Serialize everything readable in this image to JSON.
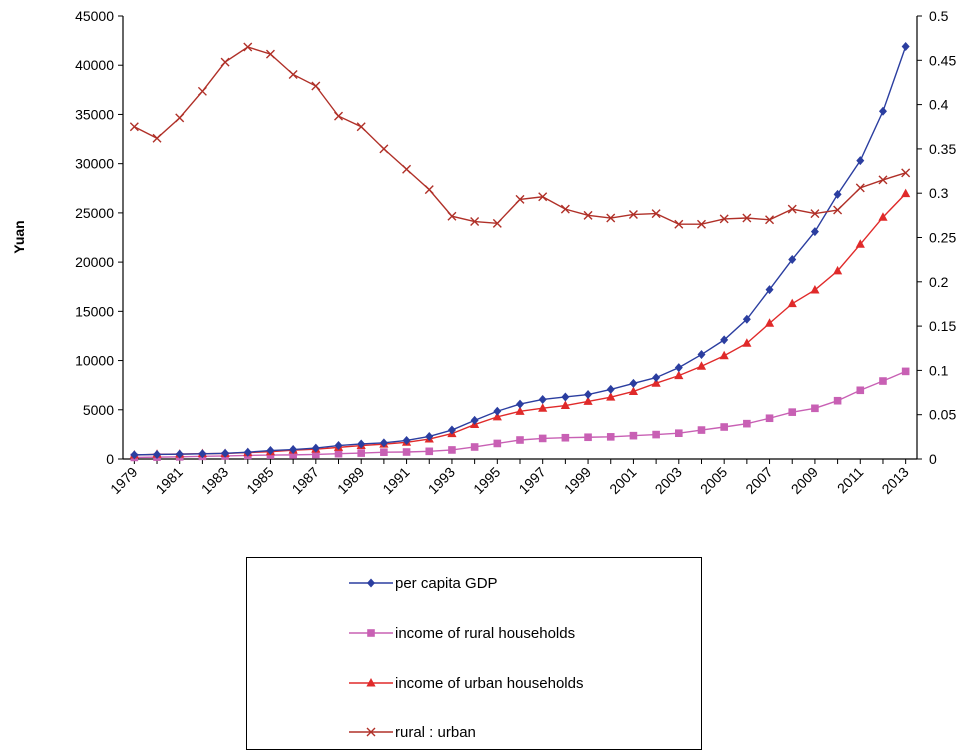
{
  "chart_data": {
    "type": "line",
    "xlabel": "",
    "ylabel": "Yuan",
    "ylim": [
      0,
      45000
    ],
    "ylim_right": [
      0,
      0.5
    ],
    "yticks_left": [
      "0",
      "5000",
      "10000",
      "15000",
      "20000",
      "25000",
      "30000",
      "35000",
      "40000",
      "45000"
    ],
    "yticks_right": [
      "0",
      "0.05",
      "0.1",
      "0.15",
      "0.2",
      "0.25",
      "0.3",
      "0.35",
      "0.4",
      "0.45",
      "0.5"
    ],
    "x_tick_labels": [
      "1979",
      "1981",
      "1983",
      "1985",
      "1987",
      "1989",
      "1991",
      "1993",
      "1995",
      "1997",
      "1999",
      "2001",
      "2003",
      "2005",
      "2007",
      "2009",
      "2011",
      "2013"
    ],
    "x": [
      1979,
      1980,
      1981,
      1982,
      1983,
      1984,
      1985,
      1986,
      1987,
      1988,
      1989,
      1990,
      1991,
      1992,
      1993,
      1994,
      1995,
      1996,
      1997,
      1998,
      1999,
      2000,
      2001,
      2002,
      2003,
      2004,
      2005,
      2006,
      2007,
      2008,
      2009,
      2010,
      2011,
      2012,
      2013
    ],
    "grid": false,
    "legend_position": "bottom",
    "series": [
      {
        "name": "per capita GDP",
        "axis": "left",
        "color": "#2b3ea0",
        "marker": "diamond",
        "values": [
          420,
          460,
          490,
          530,
          580,
          690,
          860,
          960,
          1110,
          1370,
          1530,
          1640,
          1880,
          2290,
          2940,
          3920,
          4850,
          5580,
          6050,
          6300,
          6550,
          7070,
          7680,
          8270,
          9280,
          10610,
          12100,
          14190,
          17210,
          20270,
          23100,
          26880,
          30310,
          35320,
          41900
        ]
      },
      {
        "name": "income of rural households",
        "axis": "left",
        "color": "#c860b4",
        "marker": "square",
        "values": [
          160,
          190,
          220,
          270,
          310,
          360,
          400,
          420,
          460,
          540,
          600,
          690,
          710,
          780,
          920,
          1220,
          1580,
          1930,
          2090,
          2160,
          2210,
          2250,
          2370,
          2480,
          2620,
          2940,
          3250,
          3590,
          4140,
          4760,
          5150,
          5920,
          6980,
          7920,
          8900
        ]
      },
      {
        "name": "income of urban households",
        "axis": "left",
        "color": "#e02a2a",
        "marker": "triangle",
        "values": [
          400,
          480,
          500,
          540,
          560,
          650,
          740,
          900,
          1000,
          1180,
          1370,
          1510,
          1700,
          2030,
          2580,
          3500,
          4280,
          4840,
          5160,
          5430,
          5850,
          6280,
          6860,
          7700,
          8470,
          9420,
          10490,
          11760,
          13790,
          15780,
          17170,
          19110,
          21810,
          24560,
          26960
        ]
      },
      {
        "name": "rural : urban",
        "axis": "right",
        "color": "#b03028",
        "marker": "x",
        "values": [
          0.375,
          0.362,
          0.385,
          0.415,
          0.448,
          0.465,
          0.457,
          0.434,
          0.421,
          0.387,
          0.375,
          0.35,
          0.327,
          0.304,
          0.274,
          0.268,
          0.266,
          0.293,
          0.296,
          0.282,
          0.275,
          0.272,
          0.276,
          0.277,
          0.265,
          0.265,
          0.271,
          0.272,
          0.27,
          0.282,
          0.277,
          0.281,
          0.306,
          0.315,
          0.323
        ]
      }
    ]
  }
}
